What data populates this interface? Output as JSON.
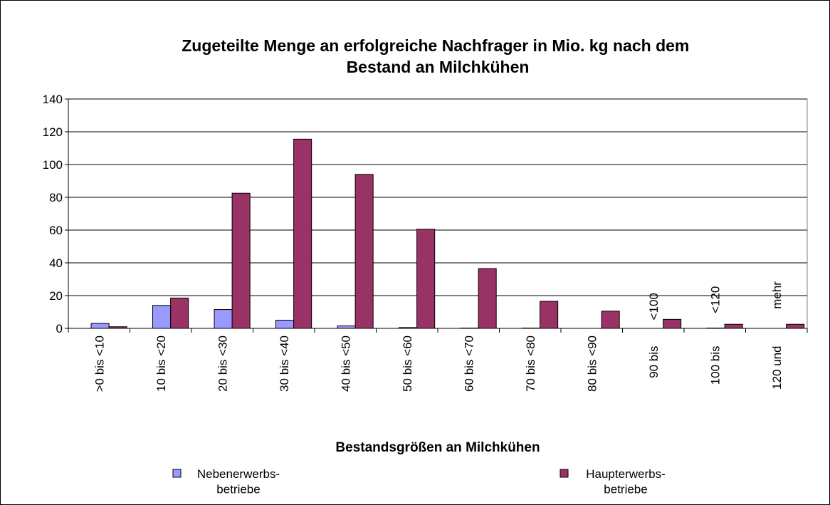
{
  "chart_data": {
    "type": "bar",
    "title": "Zugeteilte Menge an erfolgreiche Nachfrager in Mio. kg nach dem Bestand an Milchkühen",
    "x_label": "Bestandsgrößen an Milchkühen",
    "categories": [
      ">0 bis <10",
      "10 bis <20",
      "20 bis <30",
      "30 bis <40",
      "40 bis <50",
      "50 bis <60",
      "60 bis <70",
      "70 bis <80",
      "80 bis <90",
      "90 bis <100",
      "100 bis <120",
      "120 und mehr"
    ],
    "series": [
      {
        "name": "Nebenerwerbs-betriebe",
        "color": "#9999ff",
        "values": [
          3,
          14,
          11.5,
          5,
          1.5,
          0.5,
          0.2,
          0.2,
          0,
          0,
          0.2,
          0
        ]
      },
      {
        "name": "Haupterwerbs-betriebe",
        "color": "#993366",
        "values": [
          1,
          18.5,
          82.5,
          115.5,
          94,
          60.5,
          36.5,
          16.5,
          10.5,
          5.5,
          2.5,
          2.5
        ]
      }
    ],
    "ylim": [
      0,
      140
    ],
    "yticks": [
      0,
      20,
      40,
      60,
      80,
      100,
      120,
      140
    ],
    "grid": true
  }
}
